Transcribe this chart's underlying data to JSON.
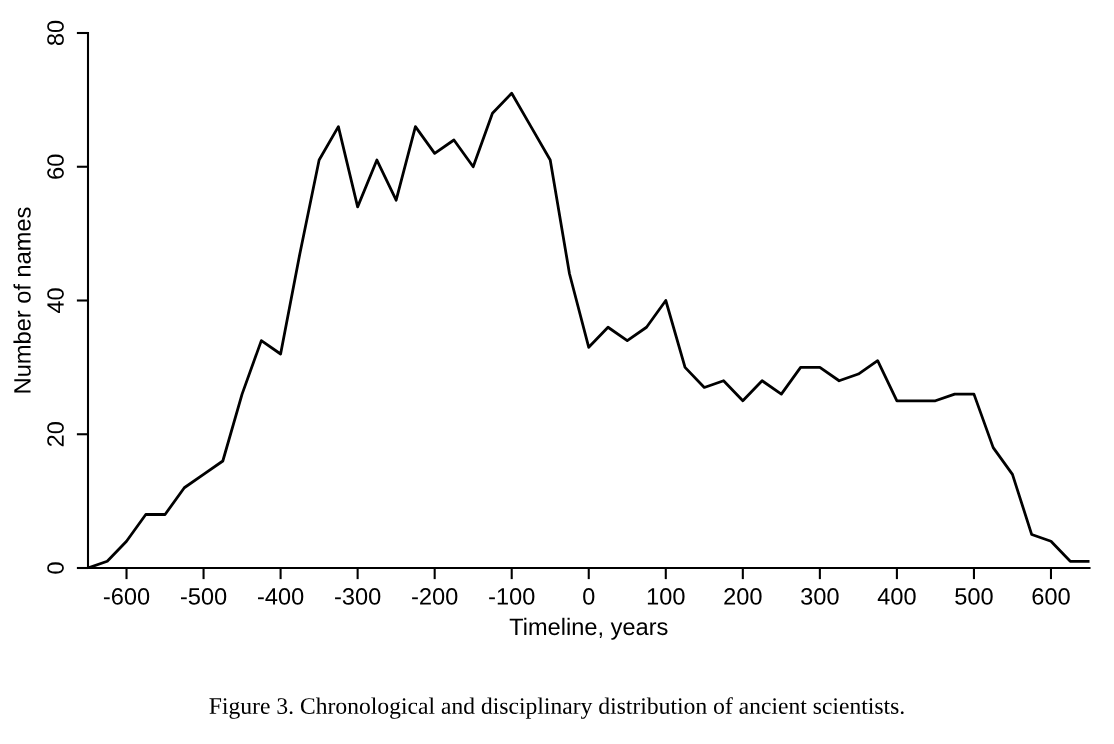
{
  "chart_data": {
    "type": "line",
    "xlabel": "Timeline, years",
    "ylabel": "Number of names",
    "x": [
      -650,
      -625,
      -600,
      -575,
      -550,
      -525,
      -500,
      -475,
      -450,
      -425,
      -400,
      -375,
      -350,
      -325,
      -300,
      -275,
      -250,
      -225,
      -200,
      -175,
      -150,
      -125,
      -100,
      -75,
      -50,
      -25,
      0,
      25,
      50,
      75,
      100,
      125,
      150,
      175,
      200,
      225,
      250,
      275,
      300,
      325,
      350,
      375,
      400,
      425,
      450,
      475,
      500,
      525,
      550,
      575,
      600,
      625,
      650
    ],
    "series": [
      {
        "color": "#000000",
        "values": [
          0,
          1,
          4,
          8,
          8,
          12,
          14,
          16,
          26,
          34,
          32,
          47,
          61,
          66,
          54,
          61,
          55,
          66,
          62,
          64,
          60,
          68,
          71,
          66,
          61,
          44,
          33,
          36,
          34,
          36,
          40,
          30,
          27,
          28,
          25,
          28,
          26,
          30,
          30,
          28,
          29,
          31,
          25,
          25,
          25,
          26,
          26,
          18,
          14,
          5,
          4,
          1,
          1
        ]
      }
    ],
    "xlim": [
      -650,
      650
    ],
    "xticks": [
      -600,
      -500,
      -400,
      -300,
      -200,
      -100,
      0,
      100,
      200,
      300,
      400,
      500,
      600
    ],
    "ylim": [
      0,
      80
    ],
    "yticks": [
      0,
      20,
      40,
      60,
      80
    ],
    "grid": false,
    "legend": false,
    "marker": "none",
    "line_style": "solid",
    "annotations": [
      "Figure 3. Chronological and disciplinary distribution of ancient scientists."
    ]
  }
}
